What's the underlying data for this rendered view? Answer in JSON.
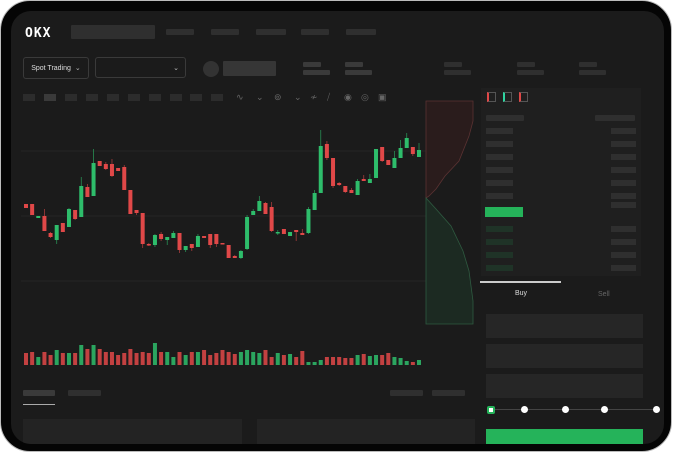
{
  "brand": {
    "logo": "OKX"
  },
  "toolbar": {
    "market_type": "Spot Trading",
    "pair_selector": ""
  },
  "trade": {
    "buy_tab": "Buy",
    "sell_tab": "Sell",
    "active_tab": "Buy",
    "slider_percent": 0,
    "slider_stops": [
      0,
      25,
      50,
      75,
      100
    ]
  },
  "colors": {
    "up": "#2ebd6b",
    "down": "#e04848",
    "accent": "#25b35a",
    "background": "#1b1b1b"
  },
  "icons": [
    "chevron-down-icon",
    "indicator-icon",
    "draw-line-icon",
    "ruler-icon",
    "camera-icon",
    "settings-icon",
    "fullscreen-icon",
    "orderbook-both-icon",
    "orderbook-bids-icon",
    "orderbook-asks-icon"
  ],
  "chart_data": {
    "type": "candlestick",
    "ylim": [
      40,
      180
    ],
    "grid": true,
    "candles": [
      [
        97,
        93,
        97,
        93
      ],
      [
        97,
        86,
        97,
        86
      ],
      [
        83,
        85,
        85,
        83
      ],
      [
        85,
        70,
        92,
        70
      ],
      [
        68,
        64,
        69,
        63
      ],
      [
        61,
        76,
        76,
        57
      ],
      [
        78,
        69,
        78,
        69
      ],
      [
        74,
        92,
        93,
        74
      ],
      [
        91,
        82,
        91,
        81
      ],
      [
        84,
        115,
        124,
        84
      ],
      [
        114,
        104,
        117,
        104
      ],
      [
        105,
        138,
        152,
        105
      ],
      [
        140,
        135,
        140,
        135
      ],
      [
        137,
        132,
        139,
        131
      ],
      [
        137,
        125,
        142,
        124
      ],
      [
        133,
        130,
        133,
        130
      ],
      [
        134,
        111,
        136,
        111
      ],
      [
        111,
        87,
        111,
        87
      ],
      [
        91,
        88,
        91,
        86
      ],
      [
        88,
        57,
        88,
        53
      ],
      [
        57,
        56,
        58,
        55
      ],
      [
        56,
        66,
        67,
        54
      ],
      [
        67,
        62,
        69,
        60
      ],
      [
        61,
        64,
        64,
        56
      ],
      [
        63,
        68,
        70,
        63
      ],
      [
        68,
        51,
        68,
        48
      ],
      [
        51,
        55,
        55,
        49
      ],
      [
        57,
        53,
        57,
        50
      ],
      [
        54,
        65,
        67,
        54
      ],
      [
        65,
        63,
        65,
        63
      ],
      [
        67,
        56,
        67,
        53
      ],
      [
        67,
        57,
        67,
        54
      ],
      [
        58,
        57,
        58,
        57
      ],
      [
        56,
        43,
        56,
        43
      ],
      [
        45,
        43,
        46,
        43
      ],
      [
        43,
        50,
        51,
        42
      ],
      [
        52,
        84,
        86,
        51
      ],
      [
        86,
        90,
        92,
        86
      ],
      [
        90,
        100,
        105,
        90
      ],
      [
        98,
        87,
        99,
        87
      ],
      [
        94,
        70,
        99,
        69
      ],
      [
        68,
        69,
        71,
        66
      ],
      [
        72,
        67,
        72,
        67
      ],
      [
        65,
        69,
        69,
        65
      ],
      [
        71,
        69,
        71,
        60
      ],
      [
        68,
        66,
        72,
        66
      ],
      [
        68,
        92,
        94,
        67
      ],
      [
        91,
        108,
        111,
        91
      ],
      [
        108,
        155,
        171,
        108
      ],
      [
        157,
        143,
        160,
        141
      ],
      [
        143,
        115,
        143,
        113
      ],
      [
        118,
        116,
        119,
        115
      ],
      [
        115,
        109,
        115,
        108
      ],
      [
        111,
        108,
        113,
        108
      ],
      [
        106,
        120,
        122,
        106
      ],
      [
        122,
        120,
        126,
        120
      ],
      [
        118,
        122,
        127,
        118
      ],
      [
        123,
        152,
        152,
        123
      ],
      [
        154,
        140,
        154,
        139
      ],
      [
        141,
        136,
        141,
        136
      ],
      [
        133,
        143,
        150,
        133
      ],
      [
        143,
        153,
        161,
        143
      ],
      [
        153,
        163,
        168,
        153
      ],
      [
        154,
        147,
        154,
        145
      ],
      [
        144,
        151,
        158,
        144
      ]
    ],
    "volume": [
      12,
      13,
      8,
      13,
      10,
      15,
      12,
      12,
      12,
      20,
      16,
      20,
      16,
      13,
      13,
      10,
      12,
      16,
      12,
      13,
      12,
      22,
      13,
      13,
      8,
      13,
      10,
      13,
      13,
      15,
      10,
      12,
      15,
      13,
      11,
      13,
      15,
      13,
      12,
      15,
      8,
      12,
      10,
      11,
      8,
      14,
      3,
      3,
      5,
      8,
      8,
      8,
      7,
      7,
      10,
      11,
      9,
      10,
      10,
      12,
      8,
      7,
      4,
      3,
      5
    ]
  }
}
